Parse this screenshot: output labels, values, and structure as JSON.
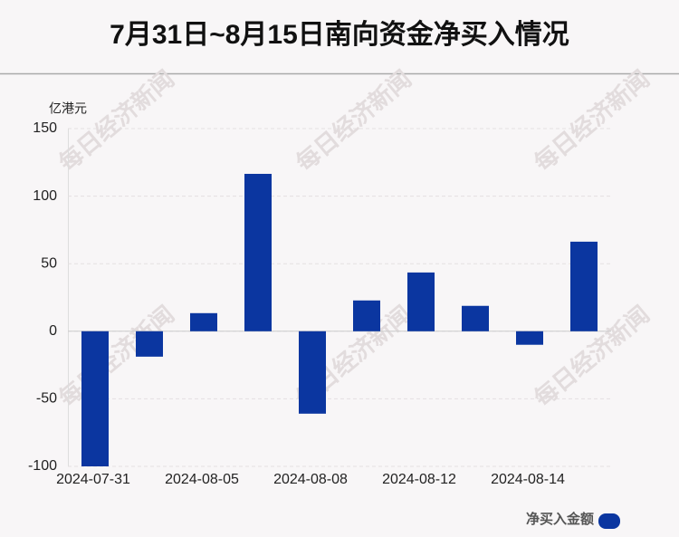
{
  "chart_data": {
    "type": "bar",
    "title": "7月31日~8月15日南向资金净买入情况",
    "y_axis_label": "亿港元",
    "categories": [
      "2024-07-31",
      null,
      "2024-08-05",
      null,
      "2024-08-08",
      null,
      "2024-08-12",
      null,
      "2024-08-14",
      null
    ],
    "series": [
      {
        "name": "净买入金额",
        "color": "#0b36a0",
        "values": [
          -100,
          -18.8,
          13.4,
          116.5,
          -61,
          22.8,
          43.5,
          18.8,
          -10,
          66.3
        ]
      }
    ],
    "ylim": [
      -100,
      150
    ],
    "yticks": [
      -100,
      -50,
      0,
      50,
      100,
      150
    ],
    "grid": true,
    "watermark": "每日经济新闻"
  }
}
